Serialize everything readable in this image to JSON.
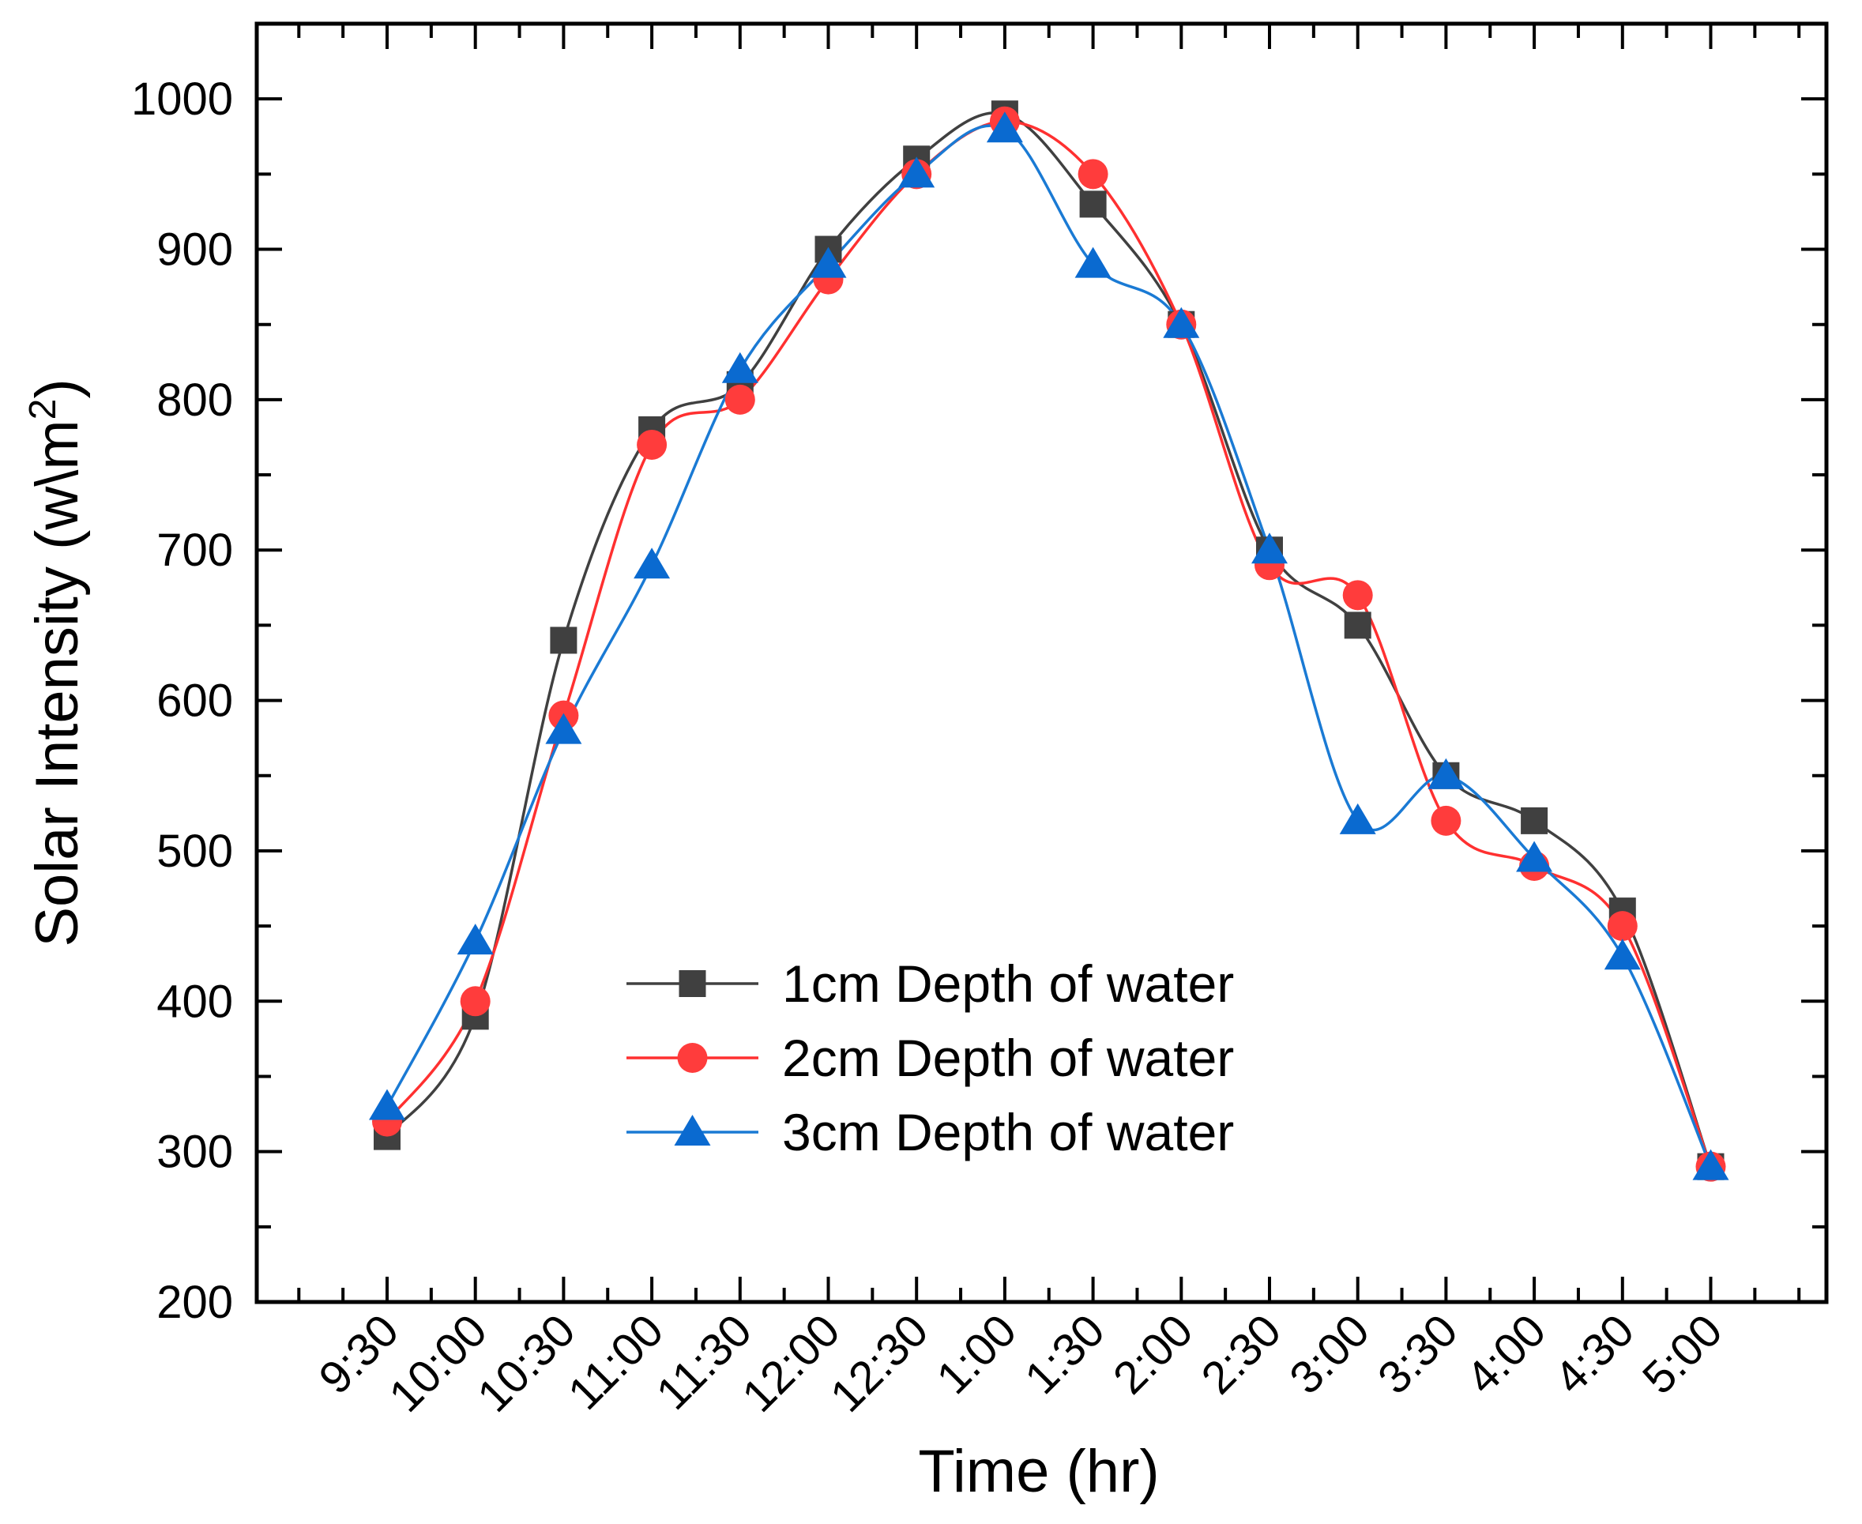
{
  "chart_data": {
    "type": "line",
    "title": "",
    "xlabel": "Time (hr)",
    "ylabel": "Solar Intensity (w\\m",
    "ylabel_superscript": "2",
    "ylabel_close": ")",
    "categories": [
      "9:30",
      "10:00",
      "10:30",
      "11:00",
      "11:30",
      "12:00",
      "12:30",
      "1:00",
      "1:30",
      "2:00",
      "2:30",
      "3:00",
      "3:30",
      "4:00",
      "4:30",
      "5:00"
    ],
    "ylim": [
      200,
      1050
    ],
    "yticks": [
      200,
      300,
      400,
      500,
      600,
      700,
      800,
      900,
      1000
    ],
    "ytick_labels": [
      "200",
      "300",
      "400",
      "500",
      "600",
      "700",
      "800",
      "900",
      "1000"
    ],
    "grid": false,
    "legend_position": "center-bottom",
    "series": [
      {
        "name": "1cm Depth of water",
        "marker": "square",
        "color": "#404040",
        "marker_color": "#404040",
        "values": [
          310,
          390,
          640,
          780,
          810,
          900,
          960,
          990,
          930,
          850,
          700,
          650,
          550,
          520,
          460,
          290
        ]
      },
      {
        "name": "2cm Depth of water",
        "marker": "circle",
        "color": "#ff3030",
        "marker_color": "#ff3c3c",
        "values": [
          320,
          400,
          590,
          770,
          800,
          880,
          950,
          985,
          950,
          850,
          690,
          670,
          520,
          490,
          450,
          290
        ]
      },
      {
        "name": "3cm Depth of water",
        "marker": "triangle",
        "color": "#1a7ad4",
        "marker_color": "#0a6ad0",
        "values": [
          330,
          440,
          580,
          690,
          820,
          890,
          950,
          980,
          890,
          850,
          700,
          520,
          550,
          495,
          430,
          290
        ]
      }
    ]
  }
}
